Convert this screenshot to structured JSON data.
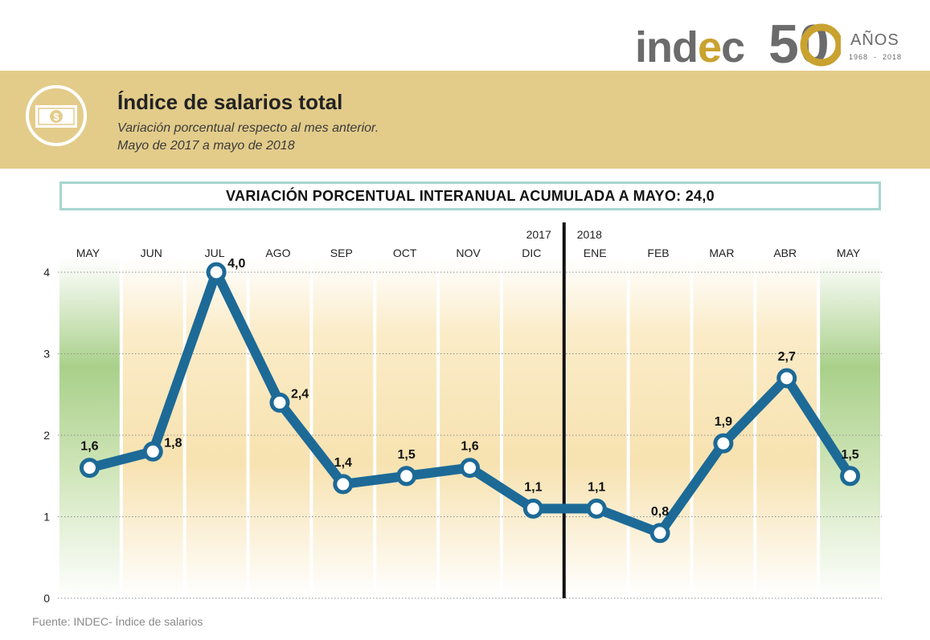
{
  "logo": {
    "brand": "indec",
    "anniversary": "50",
    "anios": "AÑOS",
    "years": "1968  -  2018"
  },
  "header": {
    "title": "Índice de salarios total",
    "subtitle_line1": "Variación porcentual respecto al mes anterior.",
    "subtitle_line2": "Mayo de 2017 a mayo de 2018",
    "icon": "money-bill-icon"
  },
  "banner": {
    "text": "VARIACIÓN PORCENTUAL INTERANUAL ACUMULADA A MAYO: 24,0"
  },
  "source": "Fuente: INDEC- Índice de salarios",
  "colors": {
    "line": "#1d6a97",
    "header_band": "#e3cc8a",
    "band_orange": "#f7e2b0",
    "band_green": "#a9d08a",
    "banner_border": "#a7d6cf",
    "logo_gold": "#c9a230",
    "logo_grey": "#6b6b6b"
  },
  "chart_data": {
    "type": "line",
    "title": "Índice de salarios total",
    "categories": [
      "MAY",
      "JUN",
      "JUL",
      "AGO",
      "SEP",
      "OCT",
      "NOV",
      "DIC",
      "ENE",
      "FEB",
      "MAR",
      "ABR",
      "MAY"
    ],
    "series": [
      {
        "values": [
          1.6,
          1.8,
          4.0,
          2.4,
          1.4,
          1.5,
          1.6,
          1.1,
          1.1,
          0.8,
          1.9,
          2.7,
          1.5
        ],
        "labels": [
          "1,6",
          "1,8",
          "4,0",
          "2,4",
          "1,4",
          "1,5",
          "1,6",
          "1,1",
          "1,1",
          "0,8",
          "1,9",
          "2,7",
          "1,5"
        ]
      }
    ],
    "yticks": [
      "0",
      "1",
      "2",
      "3",
      "4"
    ],
    "ylim": [
      0,
      4
    ],
    "year_labels": {
      "left": "2017",
      "right": "2018"
    },
    "year_divider_between": [
      "DIC",
      "ENE"
    ],
    "highlighted_categories": [
      0,
      12
    ],
    "grid": true,
    "xlabel": "",
    "ylabel": ""
  }
}
